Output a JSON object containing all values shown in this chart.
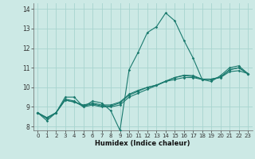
{
  "xlabel": "Humidex (Indice chaleur)",
  "xlim": [
    -0.5,
    23.5
  ],
  "ylim": [
    7.8,
    14.3
  ],
  "yticks": [
    8,
    9,
    10,
    11,
    12,
    13,
    14
  ],
  "xticks": [
    0,
    1,
    2,
    3,
    4,
    5,
    6,
    7,
    8,
    9,
    10,
    11,
    12,
    13,
    14,
    15,
    16,
    17,
    18,
    19,
    20,
    21,
    22,
    23
  ],
  "background_color": "#cce9e5",
  "grid_color": "#a8d4cf",
  "line_color": "#1a7a6e",
  "lines": [
    {
      "x": [
        0,
        1,
        2,
        3,
        4,
        5,
        6,
        7,
        8,
        9,
        10,
        11,
        12,
        13,
        14,
        15,
        16,
        17,
        18,
        19,
        20,
        21,
        22,
        23
      ],
      "y": [
        8.7,
        8.3,
        8.7,
        9.5,
        9.5,
        9.0,
        9.3,
        9.2,
        8.8,
        7.8,
        10.9,
        11.8,
        12.8,
        13.1,
        13.8,
        13.4,
        12.4,
        11.5,
        10.4,
        10.3,
        10.6,
        11.0,
        11.1,
        10.7
      ],
      "marker": true
    },
    {
      "x": [
        0,
        1,
        2,
        3,
        4,
        5,
        6,
        7,
        8,
        9,
        10,
        11,
        12,
        13,
        14,
        15,
        16,
        17,
        18,
        19,
        20,
        21,
        22,
        23
      ],
      "y": [
        8.7,
        8.4,
        8.7,
        9.4,
        9.3,
        9.0,
        9.1,
        9.0,
        9.0,
        9.1,
        9.5,
        9.7,
        9.9,
        10.1,
        10.3,
        10.4,
        10.5,
        10.5,
        10.4,
        10.4,
        10.5,
        10.8,
        10.85,
        10.7
      ],
      "marker": true
    },
    {
      "x": [
        0,
        1,
        2,
        3,
        4,
        5,
        6,
        7,
        8,
        9,
        10,
        11,
        12,
        13,
        14,
        15,
        16,
        17,
        18,
        19,
        20,
        21,
        22,
        23
      ],
      "y": [
        8.7,
        8.45,
        8.7,
        9.35,
        9.25,
        9.05,
        9.15,
        9.05,
        9.05,
        9.2,
        9.6,
        9.8,
        10.0,
        10.1,
        10.3,
        10.5,
        10.6,
        10.55,
        10.42,
        10.42,
        10.52,
        10.9,
        11.0,
        10.7
      ],
      "marker": true
    },
    {
      "x": [
        0,
        1,
        2,
        3,
        4,
        5,
        6,
        7,
        8,
        9,
        10,
        11,
        12,
        13,
        14,
        15,
        16,
        17,
        18,
        19,
        20,
        21,
        22,
        23
      ],
      "y": [
        8.7,
        8.45,
        8.7,
        9.35,
        9.25,
        9.1,
        9.2,
        9.1,
        9.1,
        9.25,
        9.65,
        9.85,
        10.0,
        10.12,
        10.32,
        10.5,
        10.62,
        10.6,
        10.42,
        10.42,
        10.52,
        10.9,
        11.0,
        10.7
      ],
      "marker": true
    }
  ]
}
